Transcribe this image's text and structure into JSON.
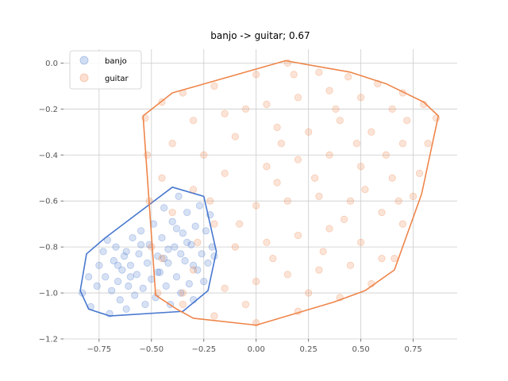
{
  "chart_data": {
    "type": "scatter",
    "title": "banjo -> guitar; 0.67",
    "xlabel": "",
    "ylabel": "",
    "xlim": [
      -0.92,
      0.96
    ],
    "ylim": [
      -1.2,
      0.06
    ],
    "xticks": [
      -0.75,
      -0.5,
      -0.25,
      0.0,
      0.25,
      0.5,
      0.75
    ],
    "xtick_labels": [
      "−0.75",
      "−0.50",
      "−0.25",
      "0.00",
      "0.25",
      "0.50",
      "0.75"
    ],
    "yticks": [
      -1.2,
      -1.0,
      -0.8,
      -0.6,
      -0.4,
      -0.2,
      0.0
    ],
    "ytick_labels": [
      "−1.2",
      "−1.0",
      "−0.8",
      "−0.6",
      "−0.4",
      "−0.2",
      "0.0"
    ],
    "grid": true,
    "legend_position": "top-left",
    "series": [
      {
        "name": "banjo",
        "color": "#4878cf",
        "hull": [
          [
            -0.84,
            -0.99
          ],
          [
            -0.8,
            -1.07
          ],
          [
            -0.7,
            -1.1
          ],
          [
            -0.35,
            -1.08
          ],
          [
            -0.23,
            -0.99
          ],
          [
            -0.19,
            -0.82
          ],
          [
            -0.25,
            -0.58
          ],
          [
            -0.4,
            -0.54
          ],
          [
            -0.72,
            -0.76
          ],
          [
            -0.81,
            -0.83
          ]
        ],
        "points": [
          [
            -0.83,
            -1.0
          ],
          [
            -0.8,
            -0.93
          ],
          [
            -0.79,
            -1.06
          ],
          [
            -0.76,
            -0.97
          ],
          [
            -0.75,
            -0.88
          ],
          [
            -0.73,
            -0.82
          ],
          [
            -0.71,
            -0.77
          ],
          [
            -0.72,
            -0.93
          ],
          [
            -0.7,
            -1.09
          ],
          [
            -0.69,
            -0.99
          ],
          [
            -0.68,
            -0.86
          ],
          [
            -0.67,
            -0.8
          ],
          [
            -0.66,
            -0.95
          ],
          [
            -0.65,
            -1.03
          ],
          [
            -0.64,
            -0.9
          ],
          [
            -0.63,
            -0.84
          ],
          [
            -0.62,
            -1.07
          ],
          [
            -0.61,
            -0.97
          ],
          [
            -0.6,
            -0.88
          ],
          [
            -0.59,
            -0.76
          ],
          [
            -0.58,
            -1.01
          ],
          [
            -0.57,
            -0.92
          ],
          [
            -0.56,
            -0.83
          ],
          [
            -0.55,
            -0.73
          ],
          [
            -0.54,
            -0.98
          ],
          [
            -0.53,
            -1.05
          ],
          [
            -0.52,
            -0.87
          ],
          [
            -0.51,
            -0.79
          ],
          [
            -0.5,
            -0.94
          ],
          [
            -0.49,
            -0.7
          ],
          [
            -0.48,
            -1.02
          ],
          [
            -0.47,
            -0.84
          ],
          [
            -0.46,
            -0.91
          ],
          [
            -0.45,
            -0.76
          ],
          [
            -0.44,
            -0.63
          ],
          [
            -0.43,
            -0.97
          ],
          [
            -0.42,
            -0.87
          ],
          [
            -0.41,
            -1.05
          ],
          [
            -0.4,
            -0.69
          ],
          [
            -0.39,
            -0.8
          ],
          [
            -0.38,
            -0.93
          ],
          [
            -0.37,
            -0.58
          ],
          [
            -0.36,
            -1.0
          ],
          [
            -0.35,
            -0.74
          ],
          [
            -0.34,
            -0.86
          ],
          [
            -0.33,
            -0.65
          ],
          [
            -0.32,
            -0.96
          ],
          [
            -0.31,
            -0.79
          ],
          [
            -0.3,
            -1.03
          ],
          [
            -0.29,
            -0.71
          ],
          [
            -0.28,
            -0.9
          ],
          [
            -0.27,
            -0.62
          ],
          [
            -0.26,
            -0.83
          ],
          [
            -0.25,
            -0.95
          ],
          [
            -0.24,
            -0.73
          ],
          [
            -0.23,
            -0.87
          ],
          [
            -0.22,
            -0.66
          ],
          [
            -0.21,
            -0.8
          ],
          [
            -0.2,
            -0.84
          ],
          [
            -0.42,
            -0.81
          ],
          [
            -0.36,
            -0.83
          ],
          [
            -0.3,
            -0.88
          ],
          [
            -0.47,
            -0.91
          ],
          [
            -0.38,
            -0.72
          ],
          [
            -0.33,
            -0.78
          ],
          [
            -0.44,
            -0.85
          ],
          [
            -0.66,
            -0.88
          ],
          [
            -0.6,
            -0.93
          ],
          [
            -0.55,
            -0.79
          ],
          [
            -0.62,
            -0.82
          ]
        ]
      },
      {
        "name": "guitar",
        "color": "#ee854a",
        "hull": [
          [
            0.14,
            0.01
          ],
          [
            0.45,
            -0.04
          ],
          [
            0.62,
            -0.09
          ],
          [
            0.8,
            -0.17
          ],
          [
            0.87,
            -0.23
          ],
          [
            0.79,
            -0.57
          ],
          [
            0.66,
            -0.9
          ],
          [
            0.52,
            -0.99
          ],
          [
            0.37,
            -1.04
          ],
          [
            0.0,
            -1.14
          ],
          [
            -0.3,
            -1.11
          ],
          [
            -0.38,
            -1.07
          ],
          [
            -0.48,
            -1.01
          ],
          [
            -0.54,
            -0.23
          ],
          [
            -0.4,
            -0.13
          ]
        ],
        "points": [
          [
            0.15,
            0.0
          ],
          [
            0.3,
            -0.04
          ],
          [
            0.44,
            -0.06
          ],
          [
            0.58,
            -0.09
          ],
          [
            0.7,
            -0.13
          ],
          [
            0.8,
            -0.18
          ],
          [
            0.86,
            -0.24
          ],
          [
            0.82,
            -0.35
          ],
          [
            0.78,
            -0.48
          ],
          [
            0.75,
            -0.58
          ],
          [
            0.7,
            -0.7
          ],
          [
            0.66,
            -0.85
          ],
          [
            0.55,
            -0.96
          ],
          [
            0.4,
            -1.02
          ],
          [
            0.2,
            -1.08
          ],
          [
            0.0,
            -1.13
          ],
          [
            -0.2,
            -1.1
          ],
          [
            -0.35,
            -1.05
          ],
          [
            -0.47,
            -1.0
          ],
          [
            -0.5,
            -0.8
          ],
          [
            -0.51,
            -0.6
          ],
          [
            -0.52,
            -0.4
          ],
          [
            -0.53,
            -0.24
          ],
          [
            -0.45,
            -0.17
          ],
          [
            -0.35,
            -0.13
          ],
          [
            -0.2,
            -0.1
          ],
          [
            0.0,
            -0.05
          ],
          [
            -0.3,
            -0.25
          ],
          [
            -0.15,
            -0.22
          ],
          [
            0.05,
            -0.18
          ],
          [
            0.2,
            -0.15
          ],
          [
            0.35,
            -0.12
          ],
          [
            0.5,
            -0.15
          ],
          [
            0.65,
            -0.2
          ],
          [
            -0.4,
            -0.35
          ],
          [
            -0.25,
            -0.4
          ],
          [
            -0.1,
            -0.32
          ],
          [
            0.1,
            -0.28
          ],
          [
            0.25,
            -0.3
          ],
          [
            0.4,
            -0.25
          ],
          [
            0.55,
            -0.3
          ],
          [
            0.7,
            -0.35
          ],
          [
            -0.45,
            -0.5
          ],
          [
            -0.3,
            -0.55
          ],
          [
            -0.15,
            -0.48
          ],
          [
            0.05,
            -0.45
          ],
          [
            0.2,
            -0.42
          ],
          [
            0.35,
            -0.4
          ],
          [
            0.5,
            -0.45
          ],
          [
            0.65,
            -0.5
          ],
          [
            -0.4,
            -0.65
          ],
          [
            -0.2,
            -0.7
          ],
          [
            0.0,
            -0.62
          ],
          [
            0.15,
            -0.6
          ],
          [
            0.3,
            -0.58
          ],
          [
            0.45,
            -0.6
          ],
          [
            0.6,
            -0.65
          ],
          [
            -0.45,
            -0.85
          ],
          [
            -0.3,
            -0.9
          ],
          [
            -0.1,
            -0.8
          ],
          [
            0.05,
            -0.78
          ],
          [
            0.2,
            -0.75
          ],
          [
            0.35,
            -0.72
          ],
          [
            0.5,
            -0.78
          ],
          [
            0.6,
            -0.85
          ],
          [
            -0.35,
            -1.0
          ],
          [
            -0.15,
            -0.98
          ],
          [
            0.0,
            -0.95
          ],
          [
            0.15,
            -0.92
          ],
          [
            0.3,
            -0.9
          ],
          [
            0.45,
            -0.88
          ],
          [
            -0.05,
            -0.2
          ],
          [
            0.12,
            -0.35
          ],
          [
            0.28,
            -0.5
          ],
          [
            0.42,
            -0.68
          ],
          [
            0.08,
            -0.85
          ],
          [
            -0.22,
            -0.6
          ],
          [
            0.38,
            -0.2
          ],
          [
            0.62,
            -0.4
          ],
          [
            0.72,
            -0.25
          ],
          [
            -0.05,
            -1.05
          ],
          [
            0.25,
            -1.0
          ],
          [
            0.18,
            -0.05
          ],
          [
            0.52,
            -0.55
          ],
          [
            -0.08,
            -0.7
          ],
          [
            0.32,
            -0.82
          ],
          [
            0.48,
            -0.35
          ],
          [
            0.68,
            -0.6
          ],
          [
            0.1,
            -0.52
          ],
          [
            -0.28,
            -0.78
          ]
        ]
      }
    ]
  }
}
